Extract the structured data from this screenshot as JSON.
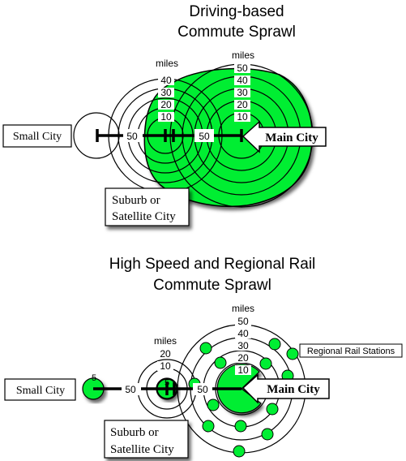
{
  "driving": {
    "title_line1": "Driving-based",
    "title_line2": "Commute Sprawl",
    "small_city": "Small City",
    "suburb_line1": "Suburb or",
    "suburb_line2": "Satellite City",
    "main_city": "Main City",
    "suburb_rings": {
      "unit": "miles",
      "labels": [
        "40",
        "30",
        "20",
        "10"
      ]
    },
    "main_rings": {
      "unit": "miles",
      "labels": [
        "50",
        "40",
        "30",
        "20",
        "10"
      ]
    },
    "distance_left": "50",
    "distance_right": "50"
  },
  "rail": {
    "title_line1": "High Speed and Regional Rail",
    "title_line2": "Commute Sprawl",
    "small_city": "Small City",
    "small_city_radius": "5",
    "suburb_line1": "Suburb or",
    "suburb_line2": "Satellite City",
    "suburb_radius": "5",
    "main_city": "Main City",
    "stations_label": "Regional Rail Stations",
    "suburb_rings": {
      "unit": "miles",
      "labels": [
        "20",
        "10"
      ]
    },
    "main_rings": {
      "unit": "miles",
      "labels": [
        "50",
        "40",
        "30",
        "20",
        "10"
      ]
    },
    "distance_left": "50",
    "distance_right": "50"
  },
  "colors": {
    "green": "#00ee33",
    "outline": "#000000",
    "background": "#ffffff"
  }
}
